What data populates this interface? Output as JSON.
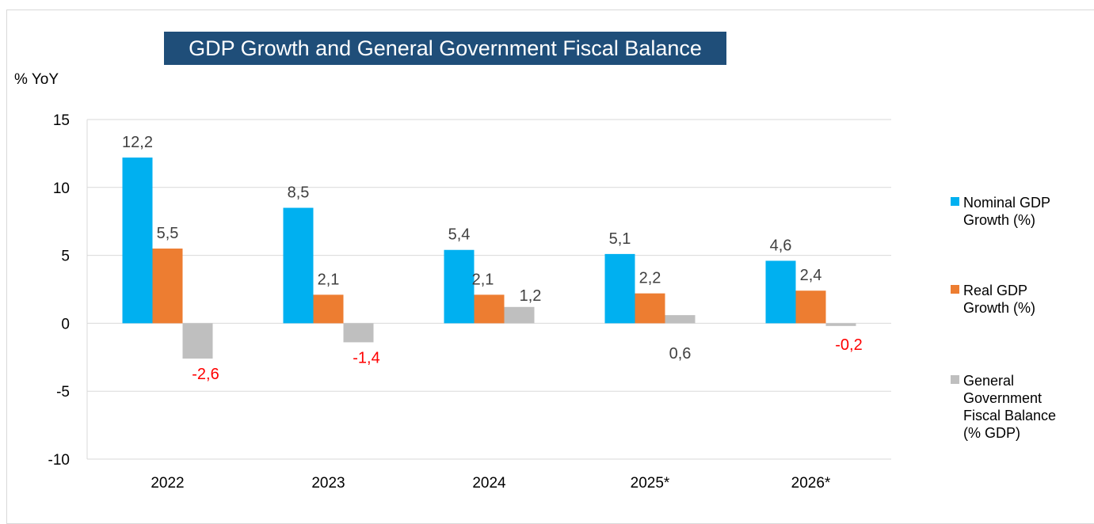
{
  "chart_data": {
    "type": "bar",
    "title": "GDP Growth and General Government  Fiscal Balance",
    "ylabel": "% YoY",
    "categories": [
      "2022",
      "2023",
      "2024",
      "2025*",
      "2026*"
    ],
    "ylim": [
      -10,
      15
    ],
    "yticks": [
      "15",
      "10",
      "5",
      "0",
      "-5",
      "-10"
    ],
    "yticks_values": [
      15,
      10,
      5,
      0,
      -5,
      -10
    ],
    "grid": true,
    "legend_position": "right",
    "series": [
      {
        "name": "Nominal GDP Growth (%)",
        "color": "#00b0f0",
        "values": [
          12.2,
          8.5,
          5.4,
          5.1,
          4.6
        ],
        "labels": [
          "12,2",
          "8,5",
          "5,4",
          "5,1",
          "4,6"
        ]
      },
      {
        "name": "Real GDP Growth (%)",
        "color": "#ed7d31",
        "values": [
          5.5,
          2.1,
          2.1,
          2.2,
          2.4
        ],
        "labels": [
          "5,5",
          "2,1",
          "2,1",
          "2,2",
          "2,4"
        ]
      },
      {
        "name": "General Government Fiscal Balance  (% GDP)",
        "color": "#bfbfbf",
        "values": [
          -2.6,
          -1.4,
          1.2,
          0.6,
          -0.2
        ],
        "labels": [
          "-2,6",
          "-1,4",
          "1,2",
          "0,6",
          "-0,2"
        ],
        "label_colors": [
          "#ff0000",
          "#ff0000",
          "#404040",
          "#404040",
          "#ff0000"
        ]
      }
    ]
  },
  "legend": [
    {
      "text": "Nominal GDP\nGrowth (%)",
      "color": "#00b0f0"
    },
    {
      "text": "Real GDP\nGrowth (%)",
      "color": "#ed7d31"
    },
    {
      "text": "General\nGovernment\nFiscal Balance\n (% GDP)",
      "color": "#bfbfbf"
    }
  ]
}
